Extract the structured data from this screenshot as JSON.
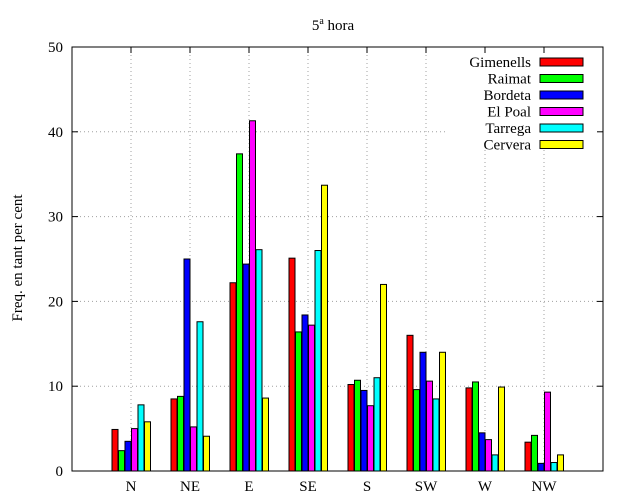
{
  "chart_data": {
    "type": "bar",
    "title": "5",
    "title_sup": "a",
    "title_rest": " hora",
    "xlabel": "",
    "ylabel": "Freq. en tant per cent",
    "ylim": [
      0,
      50
    ],
    "yticks": [
      0,
      10,
      20,
      30,
      40,
      50
    ],
    "grid": true,
    "legend_position": "top-right",
    "categories": [
      "N",
      "NE",
      "E",
      "SE",
      "S",
      "SW",
      "W",
      "NW"
    ],
    "series": [
      {
        "name": "Gimenells",
        "color": "#ff0000",
        "values": [
          4.9,
          8.5,
          22.2,
          25.1,
          10.2,
          16.0,
          9.8,
          3.4
        ]
      },
      {
        "name": "Raimat",
        "color": "#00ff00",
        "values": [
          2.4,
          8.8,
          37.4,
          16.4,
          10.7,
          9.6,
          10.5,
          4.2
        ]
      },
      {
        "name": "Bordeta",
        "color": "#0000ff",
        "values": [
          3.5,
          25.0,
          24.4,
          18.4,
          9.5,
          14.0,
          4.5,
          0.9
        ]
      },
      {
        "name": "El Poal",
        "color": "#ff00ff",
        "values": [
          5.0,
          5.2,
          41.3,
          17.2,
          7.7,
          10.6,
          3.7,
          9.3
        ]
      },
      {
        "name": "Tarrega",
        "color": "#00ffff",
        "values": [
          7.8,
          17.6,
          26.1,
          26.0,
          11.0,
          8.5,
          1.9,
          1.0
        ]
      },
      {
        "name": "Cervera",
        "color": "#ffff00",
        "values": [
          5.8,
          4.1,
          8.6,
          33.7,
          22.0,
          14.0,
          9.9,
          1.9
        ]
      }
    ]
  }
}
